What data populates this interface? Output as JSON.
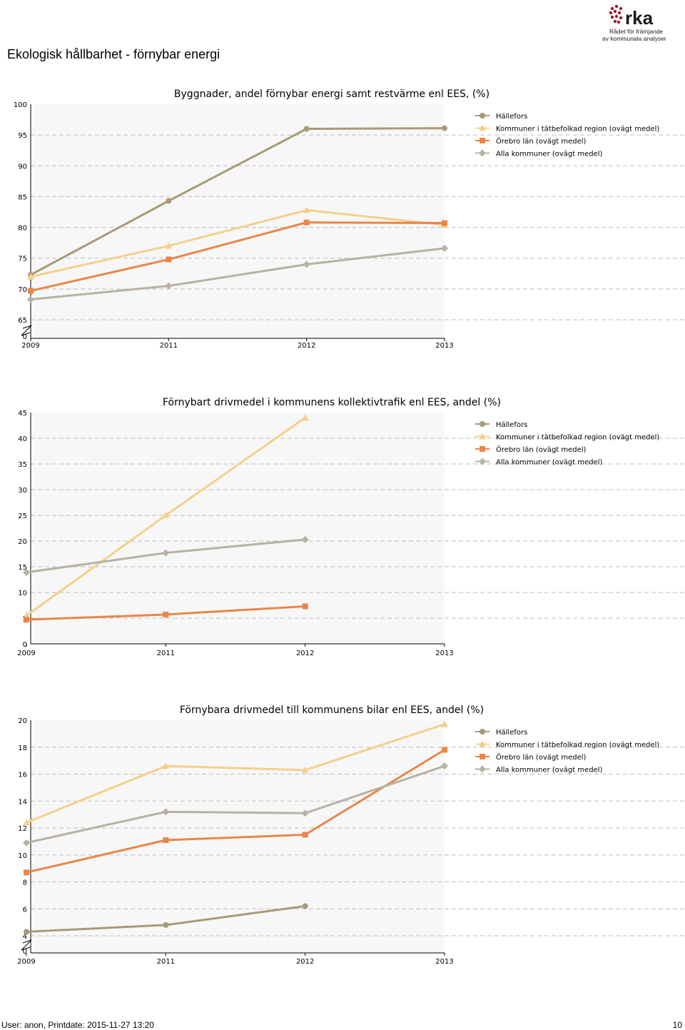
{
  "page_title": "Ekologisk hållbarhet - förnybar energi",
  "logo": {
    "text": "rka",
    "line1": "Rådet för främjande",
    "line2": "av kommunala analyser"
  },
  "footer": {
    "user_text": "User: anon, Printdate: 2015-11-27 13:20",
    "page_number": "10"
  },
  "colors": {
    "Hällefors": "#a89a78",
    "Kommuner i tätbefolkad region (ovägt medel)": "#f5cf8c",
    "Örebro län (ovägt medel)": "#e8864a",
    "Alla kommuner (ovägt medel)": "#b8b1a4"
  },
  "chart_data": [
    {
      "type": "line",
      "title": "Byggnader, andel förnybar energi samt restvärme enl EES, (%)",
      "categories": [
        "2009",
        "2011",
        "2012",
        "2013"
      ],
      "yticks": [
        "65",
        "70",
        "75",
        "80",
        "85",
        "90",
        "95",
        "100"
      ],
      "zero_label": "0",
      "ylim": [
        65,
        100
      ],
      "axis_break": true,
      "series": [
        {
          "name": "Hällefors",
          "marker": "circle",
          "values": [
            72.3,
            84.3,
            96.0,
            96.1
          ]
        },
        {
          "name": "Kommuner i tätbefolkad region (ovägt medel)",
          "marker": "triangle",
          "values": [
            72.0,
            77.0,
            82.8,
            80.4
          ]
        },
        {
          "name": "Örebro län (ovägt medel)",
          "marker": "square",
          "values": [
            69.7,
            74.8,
            80.8,
            80.7
          ]
        },
        {
          "name": "Alla kommuner (ovägt medel)",
          "marker": "diamond",
          "values": [
            68.3,
            70.5,
            74.0,
            76.6
          ]
        }
      ]
    },
    {
      "type": "line",
      "title": "Förnybart drivmedel i kommunens kollektivtrafik enl EES, andel (%)",
      "categories": [
        "2009",
        "2011",
        "2012",
        "2013"
      ],
      "yticks": [
        "0",
        "5",
        "10",
        "15",
        "20",
        "25",
        "30",
        "35",
        "40",
        "45"
      ],
      "ylim": [
        0,
        45
      ],
      "axis_break": false,
      "series": [
        {
          "name": "Hällefors",
          "marker": "circle",
          "values": [
            null,
            null,
            null,
            null
          ]
        },
        {
          "name": "Kommuner i tätbefolkad region (ovägt medel)",
          "marker": "triangle",
          "values": [
            5.5,
            25.0,
            44.0,
            null
          ]
        },
        {
          "name": "Örebro län (ovägt medel)",
          "marker": "square",
          "values": [
            4.7,
            5.7,
            7.3,
            null
          ]
        },
        {
          "name": "Alla kommuner (ovägt medel)",
          "marker": "diamond",
          "values": [
            13.9,
            17.7,
            20.3,
            null
          ]
        }
      ]
    },
    {
      "type": "line",
      "title": "Förnybara drivmedel till kommunens bilar enl EES, andel (%)",
      "categories": [
        "2009",
        "2011",
        "2012",
        "2013"
      ],
      "yticks": [
        "4",
        "6",
        "8",
        "10",
        "12",
        "14",
        "16",
        "18",
        "20"
      ],
      "zero_label": "0",
      "ylim": [
        4,
        20
      ],
      "axis_break": true,
      "series": [
        {
          "name": "Hällefors",
          "marker": "circle",
          "values": [
            4.3,
            4.8,
            6.2,
            null
          ]
        },
        {
          "name": "Kommuner i tätbefolkad region (ovägt medel)",
          "marker": "triangle",
          "values": [
            12.4,
            16.6,
            16.3,
            19.7
          ]
        },
        {
          "name": "Örebro län (ovägt medel)",
          "marker": "square",
          "values": [
            8.7,
            11.1,
            11.5,
            17.8
          ]
        },
        {
          "name": "Alla kommuner (ovägt medel)",
          "marker": "diamond",
          "values": [
            10.9,
            13.2,
            13.1,
            16.6
          ]
        }
      ]
    }
  ]
}
